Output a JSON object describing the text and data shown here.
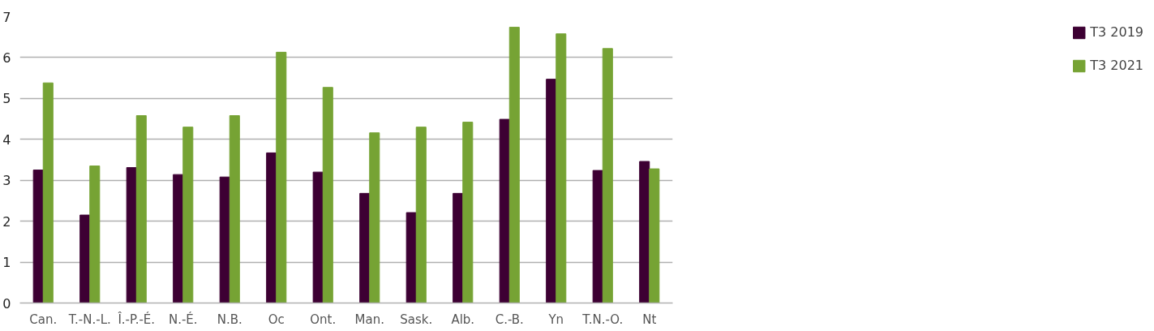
{
  "chart_data": {
    "type": "bar",
    "categories": [
      "Can.",
      "T.-N.-L.",
      "Î.-P.-É.",
      "N.-É.",
      "N.B.",
      "Oc",
      "Ont.",
      "Man.",
      "Sask.",
      "Alb.",
      "C.-B.",
      "Yn",
      "T.N.-O.",
      "Nt"
    ],
    "series": [
      {
        "name": "T3 2019",
        "color": "#3d0033",
        "values": [
          3.25,
          2.15,
          3.31,
          3.14,
          3.08,
          3.67,
          3.2,
          2.68,
          2.21,
          2.68,
          4.49,
          5.47,
          3.24,
          3.46
        ]
      },
      {
        "name": "T3 2021",
        "color": "#76a334",
        "values": [
          5.38,
          3.35,
          4.58,
          4.3,
          4.58,
          6.13,
          5.27,
          4.16,
          4.3,
          4.42,
          6.74,
          6.58,
          6.22,
          3.28
        ]
      }
    ],
    "ylim": [
      0,
      7
    ],
    "yticks": [
      0,
      1,
      2,
      3,
      4,
      5,
      6,
      7
    ],
    "grid": "y",
    "legend": "right"
  }
}
